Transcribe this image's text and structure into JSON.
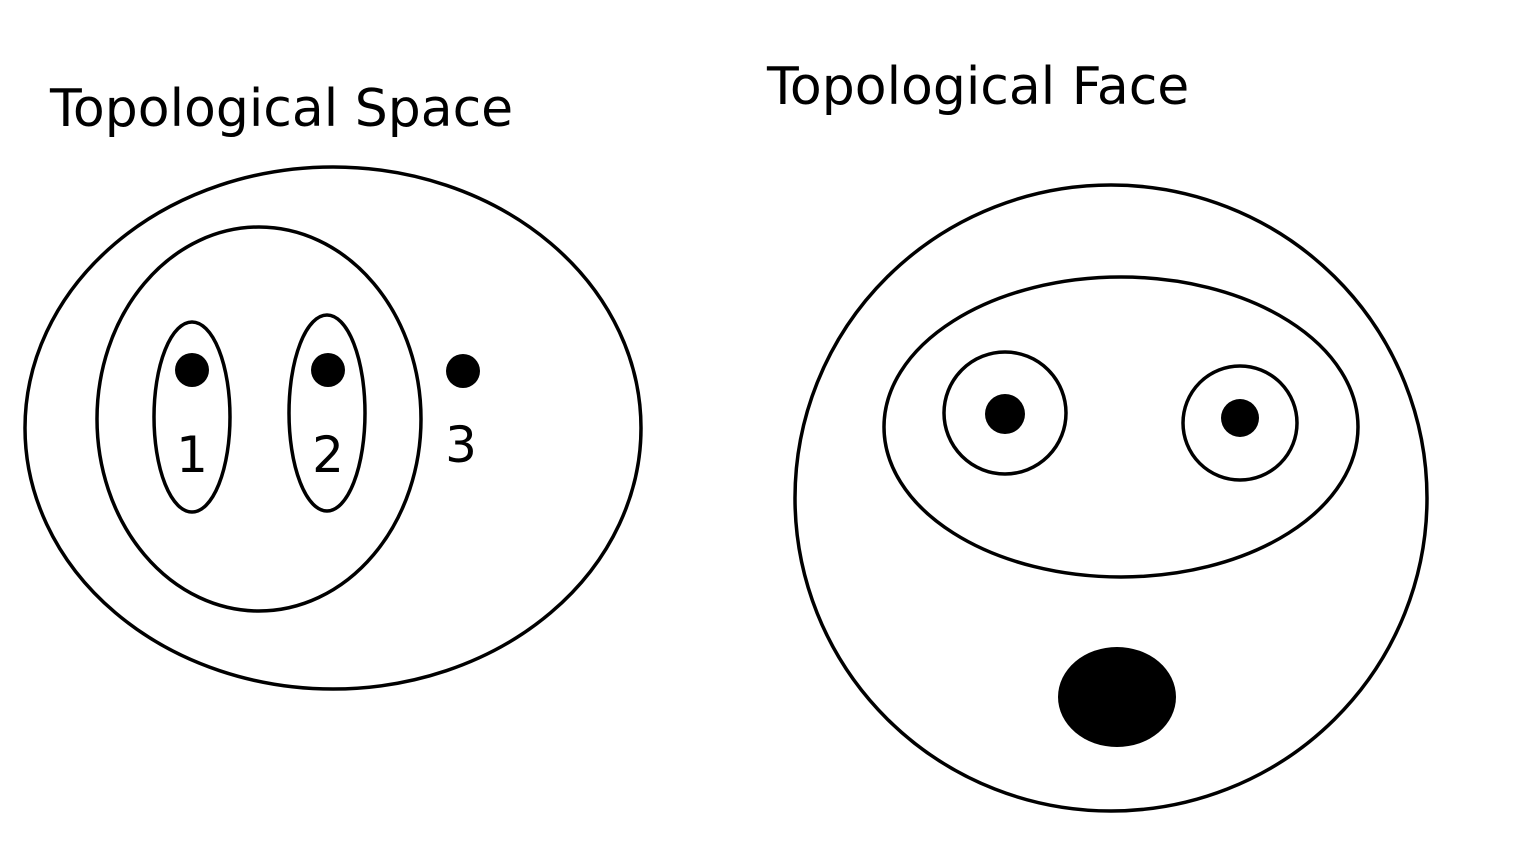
{
  "left_diagram": {
    "title": "Topological Space",
    "labels": {
      "point1": "1",
      "point2": "2",
      "point3": "3"
    }
  },
  "right_diagram": {
    "title": "Topological Face"
  },
  "colors": {
    "background": "#ffffff",
    "ink": "#000000"
  }
}
